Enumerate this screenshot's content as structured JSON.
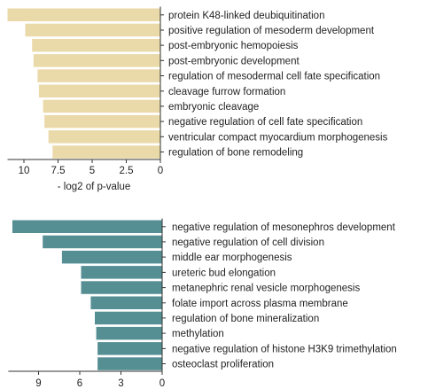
{
  "chart_data": [
    {
      "type": "bar",
      "orientation": "horizontal",
      "x_reversed": true,
      "color": "#ead9a9",
      "categories": [
        "protein K48-linked deubiquitination",
        "positive regulation of mesoderm development",
        "post-embryonic hemopoiesis",
        "post-embryonic development",
        "regulation of mesodermal cell fate specification",
        "cleavage furrow formation",
        "embryonic cleavage",
        "negative regulation of cell fate specification",
        "ventricular compact myocardium morphogenesis",
        "regulation of bone remodeling"
      ],
      "values": [
        11.2,
        9.9,
        9.4,
        9.3,
        9.0,
        8.9,
        8.6,
        8.5,
        8.2,
        7.9
      ],
      "xlabel": "- log2 of p-value",
      "xlim": [
        0,
        11.2
      ],
      "xticks": [
        10,
        7.5,
        5,
        2.5,
        0
      ],
      "xtick_labels": [
        "10",
        "7.5",
        "5",
        "2.5",
        "0"
      ],
      "grid": false
    },
    {
      "type": "bar",
      "orientation": "horizontal",
      "x_reversed": true,
      "color": "#558f94",
      "categories": [
        "negative regulation of mesonephros development",
        "negative regulation of cell division",
        "middle ear morphogenesis",
        "ureteric bud elongation",
        "metanephric renal vesicle morphogenesis",
        "folate import  across plasma membrane",
        "regulation of bone mineralization",
        "methylation",
        "negative regulation of histone H3K9 trimethylation",
        "osteoclast proliferation"
      ],
      "values": [
        10.9,
        8.7,
        7.3,
        5.9,
        5.9,
        5.2,
        4.9,
        4.8,
        4.7,
        4.7
      ],
      "xlabel": "",
      "xlim": [
        0,
        11.2
      ],
      "xticks": [
        9,
        6,
        3,
        0
      ],
      "xtick_labels": [
        "9",
        "6",
        "3",
        "0"
      ],
      "grid": false
    }
  ]
}
